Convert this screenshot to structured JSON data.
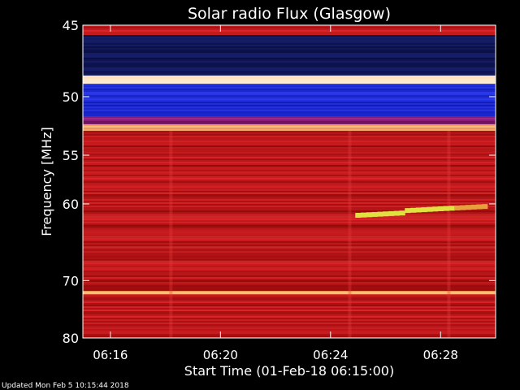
{
  "chart_data": {
    "type": "heatmap",
    "title": "Solar radio Flux (Glasgow)",
    "xlabel": "Start Time (01-Feb-18 06:15:00)",
    "ylabel": "Frequency [MHz]",
    "footer": "Updated Mon Feb  5 10:15:44 2018",
    "x_ticks": [
      "06:16",
      "06:20",
      "06:24",
      "06:28"
    ],
    "x_tick_minutes": [
      1,
      5,
      9,
      13
    ],
    "xlim_minutes": [
      0,
      15
    ],
    "y_ticks": [
      45,
      50,
      55,
      60,
      70,
      80
    ],
    "ylim": [
      45,
      80
    ],
    "bands": [
      {
        "from": 45.0,
        "to": 45.6,
        "level": "red"
      },
      {
        "from": 45.6,
        "to": 48.4,
        "level": "dark-blue"
      },
      {
        "from": 48.4,
        "to": 49.0,
        "level": "white-hot"
      },
      {
        "from": 49.0,
        "to": 51.6,
        "level": "blue"
      },
      {
        "from": 51.6,
        "to": 52.3,
        "level": "purple"
      },
      {
        "from": 52.3,
        "to": 52.8,
        "level": "orange-hot"
      },
      {
        "from": 52.8,
        "to": 80.0,
        "level": "red"
      }
    ],
    "emission_feature": {
      "start_minute": 9.9,
      "end_minute": 14.7,
      "start_mhz": 61.3,
      "end_mhz": 60.5,
      "color": "#e0e040"
    },
    "colors": {
      "background": "#000000",
      "axis": "#ffffff",
      "dark_blue": "#0a0f4a",
      "blue": "#1020d0",
      "red": "#c01010",
      "hot": "#ffd080"
    }
  }
}
